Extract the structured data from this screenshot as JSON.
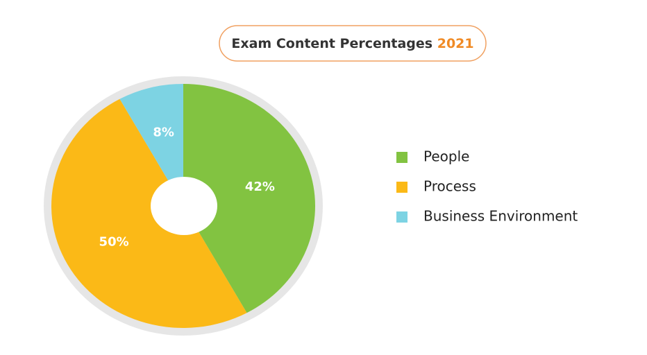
{
  "chart_data": {
    "type": "pie",
    "title": "Exam Content Percentages",
    "title_highlight": "2021",
    "categories": [
      "People",
      "Process",
      "Business Environment"
    ],
    "values": [
      42,
      50,
      8
    ],
    "value_labels": [
      "42%",
      "50%",
      "8%"
    ],
    "colors": [
      "#82c341",
      "#fbb917",
      "#7dd3e3"
    ],
    "legend": "right"
  }
}
